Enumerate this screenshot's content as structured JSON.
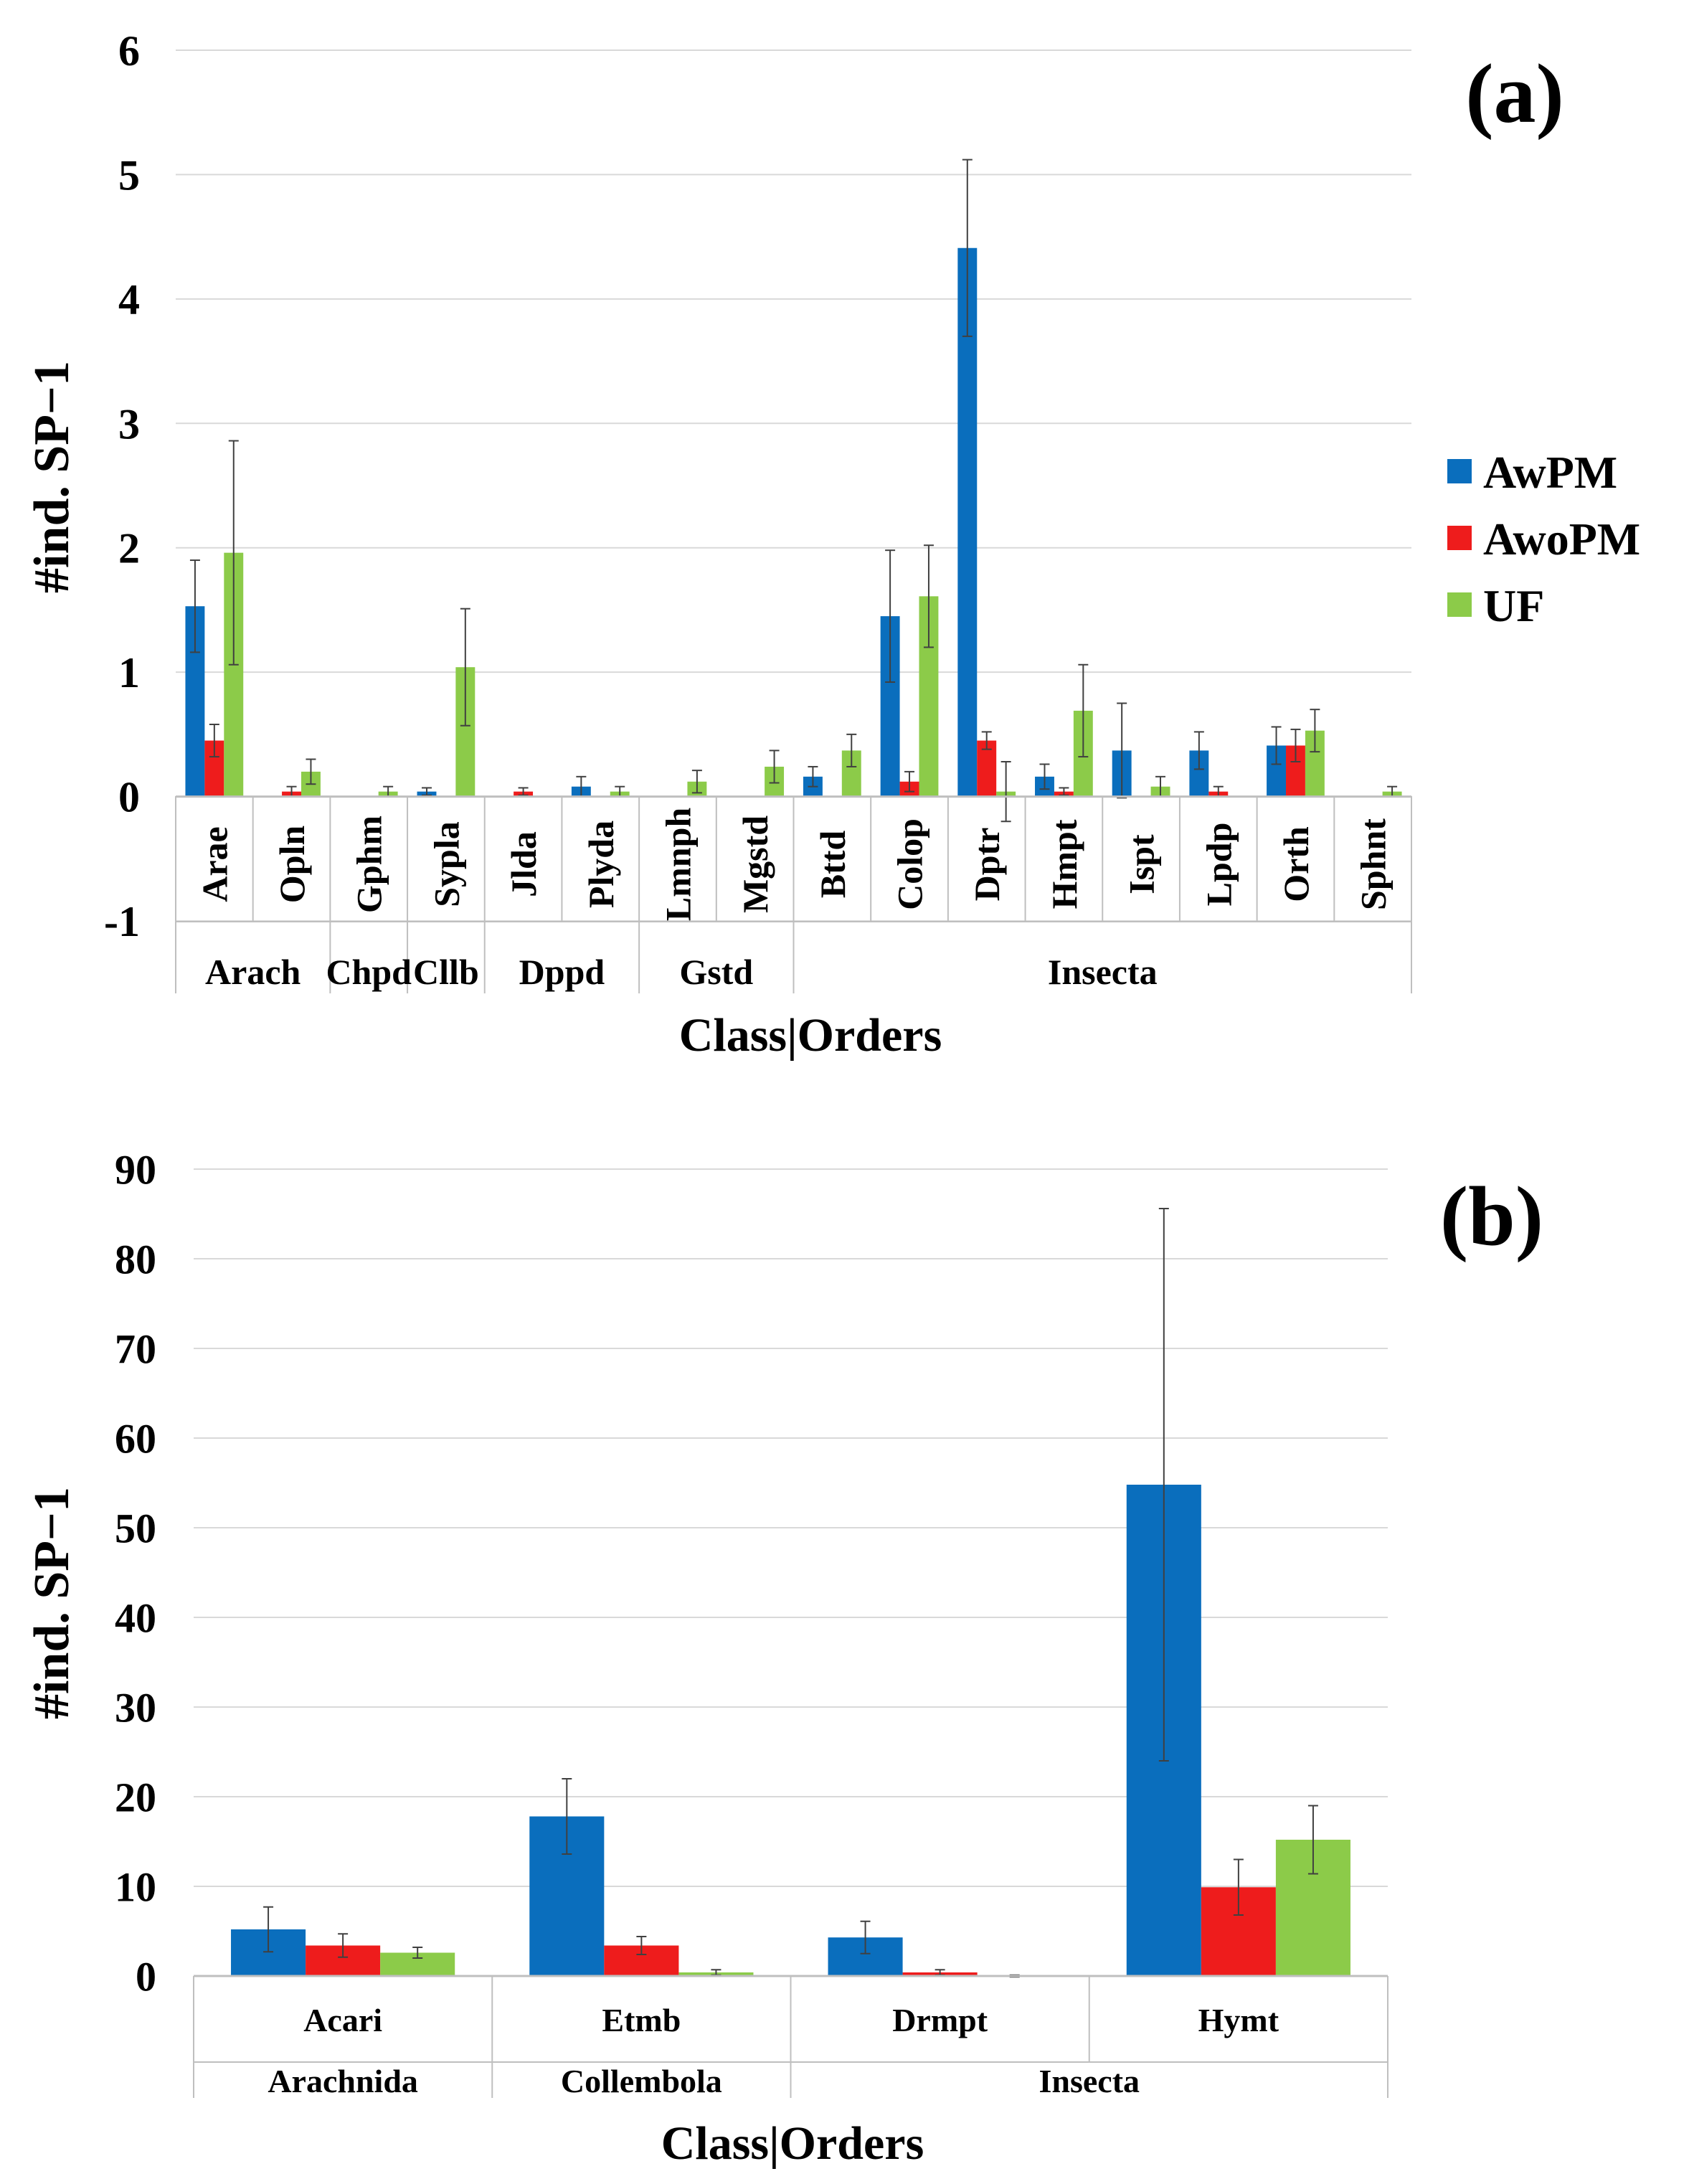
{
  "colors": {
    "AwPM": "#0a6ebd",
    "AwoPM": "#ee1c1c",
    "UF": "#8ccb49",
    "grid": "#d9d9d9",
    "axis": "#bfbfbf",
    "errorbar": "#404040"
  },
  "legend_entries": [
    "AwPM",
    "AwoPM",
    "UF"
  ],
  "chart_data": [
    {
      "panel_label": "(a)",
      "type": "bar",
      "ylabel": "#ind. SP−1",
      "xlabel": "Class|Orders",
      "ylim": [
        -1,
        6
      ],
      "yticks": [
        -1,
        0,
        1,
        2,
        3,
        4,
        5,
        6
      ],
      "grid": true,
      "legend": "right",
      "categories": [
        "Arae",
        "Opln",
        "Gphm",
        "Sypla",
        "Jlda",
        "Plyda",
        "Lmnph",
        "Mgstd",
        "Bttd",
        "Colop",
        "Dptr",
        "Hmpt",
        "Ispt",
        "Lpdp",
        "Orth",
        "Sphnt"
      ],
      "groups": [
        {
          "label": "Arach",
          "span": 2
        },
        {
          "label": "Chpd",
          "span": 1
        },
        {
          "label": "Cllb",
          "span": 1
        },
        {
          "label": "Dppd",
          "span": 2
        },
        {
          "label": "Gstd",
          "span": 2
        },
        {
          "label": "Insecta",
          "span": 8
        }
      ],
      "series": [
        {
          "name": "AwPM",
          "values": [
            1.53,
            0,
            0,
            0.04,
            0,
            0.08,
            0,
            0,
            0.16,
            1.45,
            4.41,
            0.16,
            0.37,
            0.37,
            0.41,
            0
          ],
          "errors": [
            0.37,
            0,
            0,
            0.03,
            0,
            0.08,
            0,
            0,
            0.08,
            0.53,
            0.71,
            0.1,
            0.38,
            0.15,
            0.15,
            0
          ]
        },
        {
          "name": "AwoPM",
          "values": [
            0.45,
            0.04,
            0,
            0,
            0.04,
            0,
            0,
            0,
            0,
            0.12,
            0.45,
            0.04,
            0,
            0.04,
            0.41,
            0
          ],
          "errors": [
            0.13,
            0.04,
            0,
            0,
            0.03,
            0,
            0,
            0,
            0,
            0.08,
            0.07,
            0.03,
            0,
            0.04,
            0.13,
            0
          ]
        },
        {
          "name": "UF",
          "values": [
            1.96,
            0.2,
            0.04,
            1.04,
            0,
            0.04,
            0.12,
            0.24,
            0.37,
            1.61,
            0.04,
            0.69,
            0.08,
            0,
            0.53,
            0.04
          ],
          "errors": [
            0.9,
            0.1,
            0.04,
            0.47,
            0,
            0.04,
            0.09,
            0.13,
            0.13,
            0.41,
            0.24,
            0.37,
            0.08,
            0,
            0.17,
            0.04
          ]
        }
      ]
    },
    {
      "panel_label": "(b)",
      "type": "bar",
      "ylabel": "#ind. SP−1",
      "xlabel": "Class|Orders",
      "ylim": [
        0,
        90
      ],
      "yticks": [
        0,
        10,
        20,
        30,
        40,
        50,
        60,
        70,
        80,
        90
      ],
      "grid": true,
      "legend": "none",
      "categories": [
        "Acari",
        "Etmb",
        "Drmpt",
        "Hymt"
      ],
      "groups": [
        {
          "label": "Arachnida",
          "span": 1
        },
        {
          "label": "Collembola",
          "span": 1
        },
        {
          "label": "Insecta",
          "span": 2
        }
      ],
      "series": [
        {
          "name": "AwPM",
          "values": [
            5.2,
            17.8,
            4.3,
            54.8
          ],
          "errors": [
            2.5,
            4.2,
            1.8,
            30.8
          ]
        },
        {
          "name": "AwoPM",
          "values": [
            3.4,
            3.4,
            0.4,
            9.9
          ],
          "errors": [
            1.3,
            1.0,
            0.3,
            3.1
          ]
        },
        {
          "name": "UF",
          "values": [
            2.6,
            0.4,
            0,
            15.2
          ],
          "errors": [
            0.6,
            0.3,
            0.1,
            3.8
          ]
        }
      ]
    }
  ]
}
